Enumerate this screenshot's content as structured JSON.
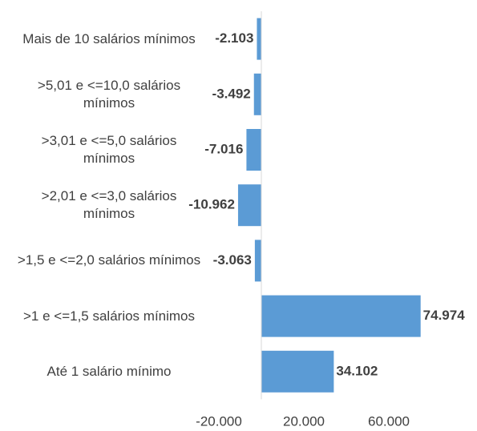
{
  "chart_data": {
    "type": "bar",
    "orientation": "horizontal",
    "categories": [
      "Mais de 10 salários mínimos",
      ">5,01 e <=10,0 salários mínimos",
      ">3,01 e <=5,0 salários mínimos",
      ">2,01 e <=3,0 salários mínimos",
      ">1,5 e <=2,0 salários mínimos",
      ">1 e <=1,5 salários mínimos",
      "Até 1 salário mínimo"
    ],
    "values": [
      -2103,
      -3492,
      -7016,
      -10962,
      -3063,
      74974,
      34102
    ],
    "value_labels": [
      "-2.103",
      "-3.492",
      "-7.016",
      "-10.962",
      "-3.063",
      "74.974",
      "34.102"
    ],
    "color": "#5b9bd5",
    "xlim": [
      -20000,
      80000
    ],
    "xticks": [
      {
        "value": -20000,
        "label": "-20.000"
      },
      {
        "value": 20000,
        "label": "20.000"
      },
      {
        "value": 60000,
        "label": "60.000"
      }
    ],
    "grid": false
  }
}
